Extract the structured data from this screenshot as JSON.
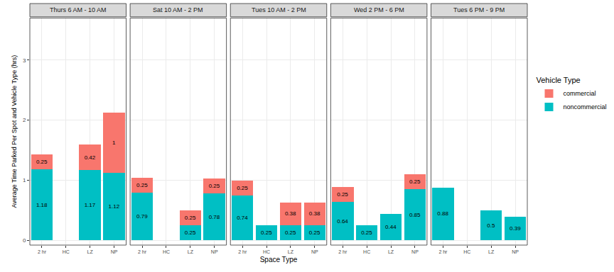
{
  "chart_data": {
    "type": "bar",
    "stacked": true,
    "data_labels": true,
    "grid": true,
    "legend": "right",
    "legend_title": "Vehicle Type",
    "xlabel": "Space Type",
    "ylabel": "Average Time Parked Per Spot and Vehicle Type (hrs)",
    "ylim": [
      -0.08,
      3.7
    ],
    "yticks": [
      0,
      1,
      2,
      3
    ],
    "categories": [
      "2 hr",
      "HC",
      "LZ",
      "NP"
    ],
    "series": [
      {
        "name": "noncommercial",
        "color": "#00BFC4"
      },
      {
        "name": "commercial",
        "color": "#F8766D"
      }
    ],
    "panels": [
      {
        "title": "Thurs 6 AM - 10 AM",
        "values": {
          "noncommercial": [
            1.18,
            null,
            1.17,
            1.12
          ],
          "commercial": [
            0.25,
            null,
            0.42,
            1
          ]
        }
      },
      {
        "title": "Sat 10 AM - 2 PM",
        "values": {
          "noncommercial": [
            0.79,
            null,
            0.25,
            0.78
          ],
          "commercial": [
            0.25,
            null,
            0.25,
            0.25
          ]
        }
      },
      {
        "title": "Tues 10 AM - 2 PM",
        "values": {
          "noncommercial": [
            0.74,
            0.25,
            0.25,
            0.25
          ],
          "commercial": [
            0.25,
            null,
            0.38,
            0.38
          ]
        }
      },
      {
        "title": "Wed 2 PM - 6 PM",
        "values": {
          "noncommercial": [
            0.64,
            0.25,
            0.44,
            0.85
          ],
          "commercial": [
            0.25,
            null,
            null,
            0.25
          ]
        }
      },
      {
        "title": "Tues 6 PM - 9 PM",
        "values": {
          "noncommercial": [
            0.88,
            null,
            0.5,
            0.39
          ],
          "commercial": [
            null,
            null,
            null,
            null
          ]
        }
      }
    ]
  }
}
